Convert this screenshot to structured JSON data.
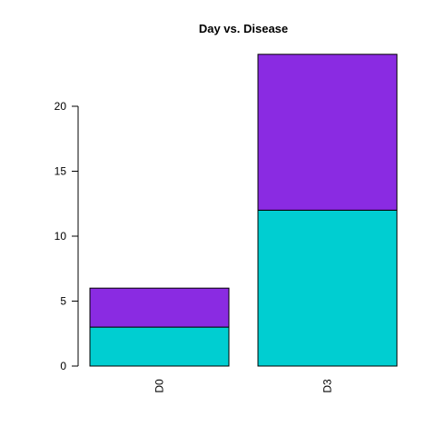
{
  "chart_data": {
    "type": "bar",
    "stacked": true,
    "title": "Day vs. Disease",
    "xlabel": "",
    "ylabel": "",
    "categories": [
      "D0",
      "D3"
    ],
    "series": [
      {
        "values": [
          3,
          12
        ],
        "color": "#00CED1"
      },
      {
        "values": [
          3,
          12
        ],
        "color": "#8A2BE2"
      }
    ],
    "ylim": [
      0,
      24
    ],
    "yticks": [
      0,
      5,
      10,
      15,
      20
    ],
    "grid": false,
    "legend": "none"
  }
}
